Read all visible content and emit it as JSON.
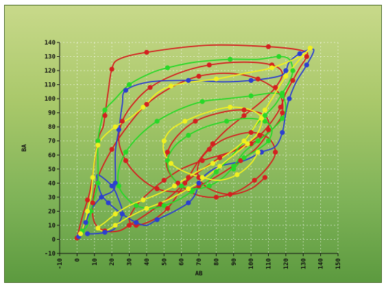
{
  "chart_data": {
    "type": "line",
    "title": "",
    "xlabel": "AB",
    "ylabel": "BA",
    "xlim": [
      -10,
      150
    ],
    "ylim": [
      -10,
      140
    ],
    "xticks": [
      -10,
      0,
      10,
      20,
      30,
      40,
      50,
      60,
      70,
      80,
      90,
      100,
      110,
      120,
      130,
      140,
      150
    ],
    "yticks": [
      -10,
      0,
      10,
      20,
      30,
      40,
      50,
      60,
      70,
      80,
      90,
      100,
      110,
      120,
      130,
      140
    ],
    "grid": true,
    "legend": "none",
    "series": [
      {
        "color": "#d42020",
        "points": [
          [
            0,
            1
          ],
          [
            3,
            16
          ],
          [
            6,
            28
          ],
          [
            8,
            38
          ],
          [
            12,
            70
          ],
          [
            15,
            80
          ],
          [
            16,
            88
          ],
          [
            18,
            106
          ],
          [
            20,
            121
          ],
          [
            24,
            128
          ],
          [
            40,
            133
          ],
          [
            75,
            138
          ],
          [
            110,
            137
          ],
          [
            130,
            134
          ],
          [
            132,
            130
          ],
          [
            128,
            122
          ],
          [
            124,
            113
          ],
          [
            120,
            104
          ],
          [
            117,
            94
          ],
          [
            112,
            84
          ],
          [
            105,
            74
          ],
          [
            95,
            66
          ],
          [
            82,
            58
          ],
          [
            70,
            48
          ],
          [
            62,
            40
          ],
          [
            55,
            32
          ],
          [
            48,
            25
          ],
          [
            40,
            18
          ],
          [
            30,
            10
          ],
          [
            24,
            6
          ],
          [
            16,
            6
          ],
          [
            10,
            12
          ],
          [
            9,
            26
          ],
          [
            12,
            44
          ],
          [
            20,
            64
          ],
          [
            30,
            82
          ],
          [
            40,
            96
          ],
          [
            54,
            108
          ],
          [
            70,
            116
          ],
          [
            88,
            118
          ],
          [
            104,
            114
          ],
          [
            116,
            104
          ],
          [
            118,
            90
          ],
          [
            112,
            78
          ],
          [
            100,
            68
          ],
          [
            88,
            62
          ],
          [
            72,
            56
          ],
          [
            60,
            50
          ],
          [
            50,
            42
          ],
          [
            42,
            34
          ],
          [
            34,
            24
          ],
          [
            30,
            14
          ],
          [
            34,
            10
          ],
          [
            44,
            14
          ],
          [
            52,
            22
          ],
          [
            58,
            32
          ],
          [
            64,
            44
          ],
          [
            70,
            56
          ],
          [
            78,
            68
          ],
          [
            86,
            78
          ],
          [
            96,
            88
          ],
          [
            106,
            98
          ],
          [
            114,
            108
          ],
          [
            118,
            118
          ],
          [
            112,
            124
          ],
          [
            96,
            126
          ],
          [
            76,
            124
          ],
          [
            58,
            118
          ],
          [
            42,
            108
          ],
          [
            32,
            96
          ],
          [
            26,
            84
          ],
          [
            24,
            70
          ],
          [
            28,
            56
          ],
          [
            36,
            44
          ],
          [
            46,
            36
          ],
          [
            58,
            34
          ],
          [
            70,
            38
          ],
          [
            82,
            46
          ],
          [
            94,
            56
          ],
          [
            104,
            66
          ],
          [
            110,
            78
          ],
          [
            108,
            88
          ],
          [
            96,
            92
          ],
          [
            82,
            90
          ],
          [
            68,
            84
          ],
          [
            58,
            74
          ],
          [
            52,
            62
          ],
          [
            52,
            50
          ],
          [
            58,
            40
          ],
          [
            68,
            32
          ],
          [
            80,
            30
          ],
          [
            92,
            34
          ],
          [
            102,
            42
          ],
          [
            110,
            52
          ],
          [
            114,
            62
          ],
          [
            110,
            72
          ],
          [
            100,
            76
          ],
          [
            86,
            72
          ],
          [
            76,
            64
          ],
          [
            70,
            54
          ],
          [
            70,
            44
          ],
          [
            76,
            36
          ],
          [
            88,
            32
          ],
          [
            100,
            36
          ],
          [
            108,
            44
          ]
        ]
      },
      {
        "color": "#2c3fd0",
        "points": [
          [
            1,
            2
          ],
          [
            3,
            6
          ],
          [
            5,
            12
          ],
          [
            8,
            21
          ],
          [
            14,
            30
          ],
          [
            20,
            34
          ],
          [
            22,
            40
          ],
          [
            22,
            62
          ],
          [
            24,
            78
          ],
          [
            26,
            96
          ],
          [
            28,
            106
          ],
          [
            42,
            112
          ],
          [
            64,
            113
          ],
          [
            84,
            112
          ],
          [
            100,
            113
          ],
          [
            116,
            116
          ],
          [
            120,
            120
          ],
          [
            122,
            126
          ],
          [
            128,
            132
          ],
          [
            136,
            135
          ],
          [
            132,
            124
          ],
          [
            126,
            112
          ],
          [
            122,
            100
          ],
          [
            120,
            90
          ],
          [
            118,
            76
          ],
          [
            114,
            66
          ],
          [
            106,
            62
          ],
          [
            96,
            56
          ],
          [
            82,
            52
          ],
          [
            74,
            46
          ],
          [
            70,
            40
          ],
          [
            68,
            32
          ],
          [
            64,
            26
          ],
          [
            56,
            20
          ],
          [
            46,
            14
          ],
          [
            40,
            10
          ],
          [
            34,
            12
          ],
          [
            26,
            18
          ],
          [
            18,
            26
          ],
          [
            14,
            32
          ],
          [
            12,
            40
          ],
          [
            12,
            46
          ],
          [
            20,
            38
          ],
          [
            24,
            28
          ],
          [
            26,
            18
          ],
          [
            22,
            8
          ],
          [
            16,
            5
          ],
          [
            10,
            4
          ],
          [
            6,
            4
          ]
        ]
      },
      {
        "color": "#28d828",
        "points": [
          [
            3,
            6
          ],
          [
            6,
            10
          ],
          [
            8,
            20
          ],
          [
            10,
            30
          ],
          [
            12,
            40
          ],
          [
            12,
            56
          ],
          [
            12,
            70
          ],
          [
            14,
            84
          ],
          [
            16,
            92
          ],
          [
            22,
            100
          ],
          [
            30,
            110
          ],
          [
            42,
            118
          ],
          [
            52,
            122
          ],
          [
            68,
            126
          ],
          [
            88,
            128
          ],
          [
            104,
            128
          ],
          [
            116,
            130
          ],
          [
            122,
            128
          ],
          [
            124,
            120
          ],
          [
            122,
            112
          ],
          [
            118,
            104
          ],
          [
            114,
            96
          ],
          [
            108,
            88
          ],
          [
            102,
            80
          ],
          [
            96,
            70
          ],
          [
            88,
            58
          ],
          [
            80,
            48
          ],
          [
            74,
            40
          ],
          [
            66,
            34
          ],
          [
            58,
            28
          ],
          [
            50,
            24
          ],
          [
            42,
            22
          ],
          [
            34,
            24
          ],
          [
            28,
            30
          ],
          [
            24,
            38
          ],
          [
            24,
            50
          ],
          [
            28,
            62
          ],
          [
            36,
            74
          ],
          [
            46,
            84
          ],
          [
            58,
            92
          ],
          [
            72,
            98
          ],
          [
            86,
            100
          ],
          [
            100,
            102
          ],
          [
            112,
            104
          ],
          [
            118,
            102
          ],
          [
            120,
            94
          ],
          [
            118,
            86
          ],
          [
            112,
            78
          ],
          [
            104,
            70
          ],
          [
            96,
            62
          ],
          [
            90,
            52
          ],
          [
            84,
            44
          ],
          [
            76,
            38
          ],
          [
            68,
            36
          ],
          [
            60,
            38
          ],
          [
            54,
            46
          ],
          [
            52,
            56
          ],
          [
            56,
            66
          ],
          [
            64,
            74
          ],
          [
            74,
            80
          ],
          [
            86,
            84
          ],
          [
            98,
            86
          ],
          [
            108,
            84
          ],
          [
            112,
            78
          ],
          [
            110,
            70
          ],
          [
            104,
            64
          ],
          [
            96,
            58
          ],
          [
            90,
            50
          ]
        ]
      },
      {
        "color": "#f0f020",
        "points": [
          [
            2,
            4
          ],
          [
            4,
            10
          ],
          [
            6,
            20
          ],
          [
            8,
            32
          ],
          [
            9,
            44
          ],
          [
            10,
            56
          ],
          [
            12,
            67
          ],
          [
            16,
            74
          ],
          [
            22,
            80
          ],
          [
            30,
            86
          ],
          [
            38,
            94
          ],
          [
            46,
            104
          ],
          [
            54,
            109
          ],
          [
            66,
            112
          ],
          [
            80,
            114
          ],
          [
            96,
            118
          ],
          [
            112,
            122
          ],
          [
            128,
            130
          ],
          [
            134,
            136
          ],
          [
            128,
            128
          ],
          [
            120,
            116
          ],
          [
            114,
            104
          ],
          [
            108,
            92
          ],
          [
            102,
            80
          ],
          [
            96,
            70
          ],
          [
            88,
            62
          ],
          [
            78,
            54
          ],
          [
            66,
            46
          ],
          [
            56,
            38
          ],
          [
            46,
            32
          ],
          [
            38,
            28
          ],
          [
            30,
            24
          ],
          [
            22,
            18
          ],
          [
            16,
            12
          ],
          [
            12,
            8
          ],
          [
            16,
            6
          ],
          [
            22,
            10
          ],
          [
            30,
            16
          ],
          [
            40,
            22
          ],
          [
            52,
            28
          ],
          [
            64,
            36
          ],
          [
            74,
            44
          ],
          [
            82,
            52
          ],
          [
            90,
            60
          ],
          [
            98,
            68
          ],
          [
            104,
            76
          ],
          [
            106,
            86
          ],
          [
            100,
            92
          ],
          [
            88,
            94
          ],
          [
            74,
            90
          ],
          [
            62,
            84
          ],
          [
            54,
            78
          ],
          [
            50,
            70
          ],
          [
            50,
            62
          ],
          [
            54,
            54
          ],
          [
            62,
            48
          ],
          [
            72,
            44
          ],
          [
            82,
            42
          ],
          [
            92,
            46
          ],
          [
            100,
            54
          ],
          [
            104,
            62
          ]
        ]
      }
    ]
  }
}
